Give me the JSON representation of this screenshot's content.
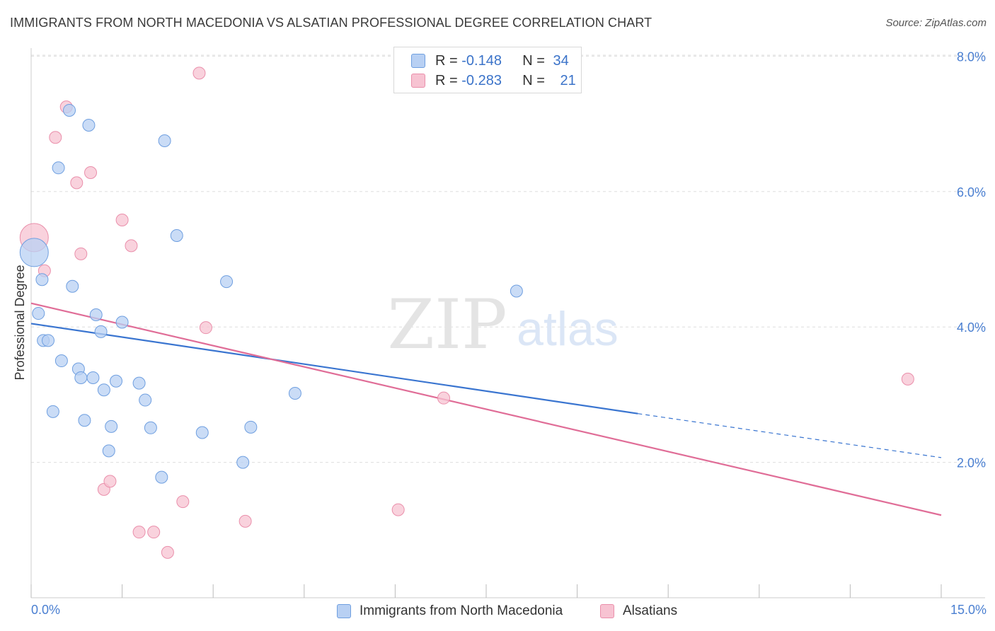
{
  "title": "IMMIGRANTS FROM NORTH MACEDONIA VS ALSATIAN PROFESSIONAL DEGREE CORRELATION CHART",
  "source": "Source: ZipAtlas.com",
  "watermark": {
    "zip": "ZIP",
    "atlas": "atlas"
  },
  "legend_top": {
    "rows": [
      {
        "r_label": "R =",
        "r_value": "-0.148",
        "n_label": "N =",
        "n_value": "34"
      },
      {
        "r_label": "R =",
        "r_value": "-0.283",
        "n_label": "N =",
        "n_value": "21"
      }
    ]
  },
  "colors": {
    "blue_fill": "#b8d0f3",
    "blue_stroke": "#6f9fe0",
    "blue_line": "#3a75d0",
    "pink_fill": "#f7c3d2",
    "pink_stroke": "#ea8fab",
    "pink_line": "#e06d97",
    "axis_label": "#4a7fd1",
    "grid": "#dddddd"
  },
  "chart_data": {
    "type": "scatter",
    "title": "IMMIGRANTS FROM NORTH MACEDONIA VS ALSATIAN PROFESSIONAL DEGREE CORRELATION CHART",
    "xlabel": "",
    "ylabel": "Professional Degree",
    "xlim": [
      0,
      15
    ],
    "ylim": [
      0,
      8.2
    ],
    "x_tick_labels": [
      "0.0%",
      "15.0%"
    ],
    "y_ticks": [
      2,
      4,
      6,
      8
    ],
    "y_tick_labels": [
      "2.0%",
      "4.0%",
      "6.0%",
      "8.0%"
    ],
    "grid": true,
    "legend_position": "bottom",
    "series": [
      {
        "name": "Immigrants from North Macedonia",
        "color": "#b8d0f3",
        "points": [
          {
            "x": 0.05,
            "y": 5.1,
            "big": true
          },
          {
            "x": 0.12,
            "y": 4.2
          },
          {
            "x": 0.18,
            "y": 4.7
          },
          {
            "x": 0.2,
            "y": 3.8
          },
          {
            "x": 0.28,
            "y": 3.8
          },
          {
            "x": 0.36,
            "y": 2.75
          },
          {
            "x": 0.45,
            "y": 6.35
          },
          {
            "x": 0.5,
            "y": 3.5
          },
          {
            "x": 0.63,
            "y": 7.2
          },
          {
            "x": 0.68,
            "y": 4.6
          },
          {
            "x": 0.78,
            "y": 3.38
          },
          {
            "x": 0.82,
            "y": 3.25
          },
          {
            "x": 0.88,
            "y": 2.62
          },
          {
            "x": 0.95,
            "y": 6.98
          },
          {
            "x": 1.02,
            "y": 3.25
          },
          {
            "x": 1.07,
            "y": 4.18
          },
          {
            "x": 1.15,
            "y": 3.93
          },
          {
            "x": 1.2,
            "y": 3.07
          },
          {
            "x": 1.28,
            "y": 2.17
          },
          {
            "x": 1.32,
            "y": 2.53
          },
          {
            "x": 1.4,
            "y": 3.2
          },
          {
            "x": 1.5,
            "y": 4.07
          },
          {
            "x": 1.78,
            "y": 3.17
          },
          {
            "x": 1.88,
            "y": 2.92
          },
          {
            "x": 1.97,
            "y": 2.51
          },
          {
            "x": 2.15,
            "y": 1.78
          },
          {
            "x": 2.2,
            "y": 6.75
          },
          {
            "x": 2.4,
            "y": 5.35
          },
          {
            "x": 2.82,
            "y": 2.44
          },
          {
            "x": 3.22,
            "y": 4.67
          },
          {
            "x": 3.49,
            "y": 2.0
          },
          {
            "x": 3.62,
            "y": 2.52
          },
          {
            "x": 4.35,
            "y": 3.02
          },
          {
            "x": 8.0,
            "y": 4.53
          }
        ],
        "trend": {
          "x_start": 0,
          "y_start": 4.05,
          "x_solid_end": 10.0,
          "y_solid_end": 2.72,
          "x_end": 15,
          "y_end": 2.07
        }
      },
      {
        "name": "Alsatians",
        "color": "#f7c3d2",
        "points": [
          {
            "x": 0.05,
            "y": 5.32,
            "big": true
          },
          {
            "x": 0.22,
            "y": 4.83
          },
          {
            "x": 0.4,
            "y": 6.8
          },
          {
            "x": 0.58,
            "y": 7.25
          },
          {
            "x": 0.75,
            "y": 6.13
          },
          {
            "x": 0.82,
            "y": 5.08
          },
          {
            "x": 0.98,
            "y": 6.28
          },
          {
            "x": 1.2,
            "y": 1.6
          },
          {
            "x": 1.3,
            "y": 1.72
          },
          {
            "x": 1.5,
            "y": 5.58
          },
          {
            "x": 1.65,
            "y": 5.2
          },
          {
            "x": 1.78,
            "y": 0.97
          },
          {
            "x": 2.02,
            "y": 0.97
          },
          {
            "x": 2.25,
            "y": 0.67
          },
          {
            "x": 2.5,
            "y": 1.42
          },
          {
            "x": 2.77,
            "y": 7.75
          },
          {
            "x": 2.88,
            "y": 3.99
          },
          {
            "x": 3.53,
            "y": 1.13
          },
          {
            "x": 6.05,
            "y": 1.3
          },
          {
            "x": 6.8,
            "y": 2.95
          },
          {
            "x": 14.45,
            "y": 3.23
          }
        ],
        "trend": {
          "x_start": 0,
          "y_start": 4.35,
          "x_end": 15,
          "y_end": 1.22
        }
      }
    ]
  }
}
